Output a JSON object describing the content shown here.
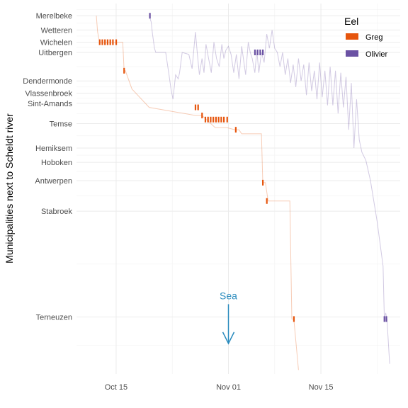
{
  "chart_data": {
    "type": "line",
    "ylabel": "Municipalities next to Scheldt river",
    "xlabel": "",
    "x_ticks": [
      "Oct 15",
      "Nov 01",
      "Nov 15"
    ],
    "x_tick_days": [
      15,
      32,
      46
    ],
    "xlim_days": [
      9,
      58
    ],
    "ylim": [
      -5,
      177
    ],
    "y_ticks": [
      {
        "label": "Merelbeke",
        "value": 171
      },
      {
        "label": "Wetteren",
        "value": 164
      },
      {
        "label": "Wichelen",
        "value": 158
      },
      {
        "label": "Uitbergen",
        "value": 153
      },
      {
        "label": "Dendermonde",
        "value": 139
      },
      {
        "label": "Vlassenbroek",
        "value": 133
      },
      {
        "label": "Sint-Amands",
        "value": 128
      },
      {
        "label": "Temse",
        "value": 118
      },
      {
        "label": "Hemiksem",
        "value": 106
      },
      {
        "label": "Hoboken",
        "value": 99
      },
      {
        "label": "Antwerpen",
        "value": 90
      },
      {
        "label": "Stabroek",
        "value": 75
      },
      {
        "label": "Terneuzen",
        "value": 23
      }
    ],
    "legend": {
      "title": "Eel",
      "position": "top-right"
    },
    "series": [
      {
        "name": "Greg",
        "color": "#e6550d",
        "x": [
          12.0,
          12.2,
          12.5,
          14.5,
          15.0,
          16.0,
          16.2,
          16.4,
          17.4,
          20.0,
          27.0,
          28.0,
          30.0,
          31.8,
          33.0,
          33.6,
          34.0,
          37.0,
          37.2,
          37.6,
          38.0,
          38.4,
          41.3,
          41.6,
          41.9,
          42.6
        ],
        "y": [
          171,
          163,
          158,
          158,
          158,
          158,
          144,
          144,
          135,
          126,
          122,
          122,
          116,
          116,
          115,
          115,
          113,
          113,
          89,
          89,
          80,
          80,
          80,
          22,
          22,
          -3
        ],
        "marks": [
          {
            "x": 12.5,
            "y": 158
          },
          {
            "x": 12.9,
            "y": 158
          },
          {
            "x": 13.3,
            "y": 158
          },
          {
            "x": 13.7,
            "y": 158
          },
          {
            "x": 14.1,
            "y": 158
          },
          {
            "x": 14.5,
            "y": 158
          },
          {
            "x": 15.0,
            "y": 158
          },
          {
            "x": 16.2,
            "y": 144
          },
          {
            "x": 27.0,
            "y": 126
          },
          {
            "x": 27.4,
            "y": 126
          },
          {
            "x": 28.0,
            "y": 122
          },
          {
            "x": 28.5,
            "y": 120
          },
          {
            "x": 28.9,
            "y": 120
          },
          {
            "x": 29.3,
            "y": 120
          },
          {
            "x": 29.7,
            "y": 120
          },
          {
            "x": 30.1,
            "y": 120
          },
          {
            "x": 30.5,
            "y": 120
          },
          {
            "x": 30.9,
            "y": 120
          },
          {
            "x": 31.3,
            "y": 120
          },
          {
            "x": 31.8,
            "y": 120
          },
          {
            "x": 33.1,
            "y": 115
          },
          {
            "x": 37.2,
            "y": 89
          },
          {
            "x": 37.8,
            "y": 80
          },
          {
            "x": 41.9,
            "y": 22
          }
        ]
      },
      {
        "name": "Olivier",
        "color": "#6a51a3",
        "x": [
          20.0,
          20.3,
          20.5,
          20.8,
          21.0,
          22.0,
          22.5,
          23.0,
          23.3,
          23.6,
          24.0,
          24.4,
          24.6,
          25.0,
          26.0,
          26.5,
          27.0,
          27.3,
          27.6,
          28.0,
          28.3,
          28.6,
          29.0,
          29.4,
          29.8,
          30.2,
          30.6,
          31.0,
          31.3,
          31.6,
          32.0,
          32.4,
          32.8,
          33.2,
          33.6,
          34.0,
          34.3,
          34.6,
          35.0,
          35.3,
          35.6,
          36.0,
          36.3,
          36.6,
          37.0,
          37.4,
          37.8,
          38.2,
          38.6,
          39.0,
          39.4,
          39.8,
          40.2,
          40.6,
          41.0,
          41.4,
          41.8,
          42.2,
          42.6,
          43.0,
          43.4,
          43.8,
          44.2,
          44.6,
          45.0,
          45.4,
          45.8,
          46.2,
          46.6,
          47.0,
          47.4,
          47.8,
          48.2,
          48.6,
          49.0,
          49.4,
          49.8,
          50.2,
          50.6,
          51.0,
          51.4,
          51.8,
          52.2,
          52.8,
          53.5,
          54.5,
          55.4,
          55.6,
          55.8,
          56.0,
          56.4
        ],
        "y": [
          171,
          168,
          162,
          155,
          153,
          153,
          153,
          142,
          135,
          130,
          142,
          140,
          143,
          153,
          152,
          145,
          163,
          152,
          142,
          150,
          143,
          157,
          150,
          143,
          158,
          150,
          146,
          157,
          150,
          154,
          156,
          152,
          143,
          152,
          140,
          156,
          149,
          142,
          158,
          153,
          150,
          143,
          154,
          143,
          153,
          148,
          162,
          155,
          164,
          155,
          153,
          146,
          153,
          142,
          150,
          138,
          147,
          136,
          150,
          139,
          147,
          132,
          148,
          134,
          144,
          130,
          148,
          131,
          144,
          127,
          146,
          127,
          144,
          123,
          143,
          126,
          141,
          115,
          138,
          106,
          130,
          110,
          104,
          100,
          90,
          70,
          48,
          22,
          25,
          22,
          0
        ],
        "marks": [
          {
            "x": 20.1,
            "y": 171
          },
          {
            "x": 36.0,
            "y": 153
          },
          {
            "x": 36.4,
            "y": 153
          },
          {
            "x": 36.8,
            "y": 153
          },
          {
            "x": 37.2,
            "y": 153
          },
          {
            "x": 55.6,
            "y": 22
          },
          {
            "x": 55.9,
            "y": 22
          }
        ]
      }
    ],
    "annotations": [
      {
        "text": "Sea",
        "x": 32.0,
        "y": 30,
        "arrow_to_y": 10,
        "color": "#2b8cbe"
      }
    ]
  }
}
